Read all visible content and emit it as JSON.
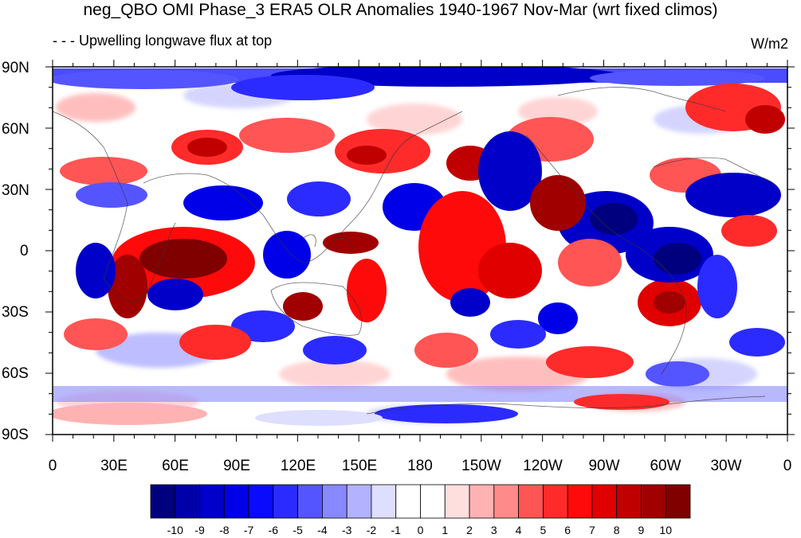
{
  "title": "neg_QBO OMI Phase_3 ERA5 OLR Anomalies 1940-1967 Nov-Mar (wrt fixed climos)",
  "subtitle": "- - - Upwelling longwave flux at top",
  "units": "W/m2",
  "map": {
    "projection": "cylindrical equidistant",
    "lon_range": [
      0,
      360
    ],
    "lat_range": [
      -90,
      90
    ],
    "y_ticks": [
      "90N",
      "60N",
      "30N",
      "0",
      "30S",
      "60S",
      "90S"
    ],
    "x_ticks": [
      "0",
      "30E",
      "60E",
      "90E",
      "120E",
      "150E",
      "180",
      "150W",
      "120W",
      "90W",
      "60W",
      "30W",
      "0"
    ],
    "coastlines": true
  },
  "colorbar": {
    "labels": [
      "-10",
      "-9",
      "-8",
      "-7",
      "-6",
      "-5",
      "-4",
      "-3",
      "-2",
      "-1",
      "0",
      "1",
      "2",
      "3",
      "4",
      "5",
      "6",
      "7",
      "8",
      "9",
      "10"
    ],
    "colors": [
      "#00007f",
      "#0000a8",
      "#0000c8",
      "#0000e8",
      "#0a0aff",
      "#2b2bff",
      "#5555ff",
      "#8888ff",
      "#b2b2ff",
      "#dedeff",
      "#ffffff",
      "#ffffff",
      "#ffdede",
      "#ffb2b2",
      "#ff8a8a",
      "#ff5555",
      "#ff2b2b",
      "#ff0a0a",
      "#e00000",
      "#c00000",
      "#a00000",
      "#800000"
    ]
  }
}
